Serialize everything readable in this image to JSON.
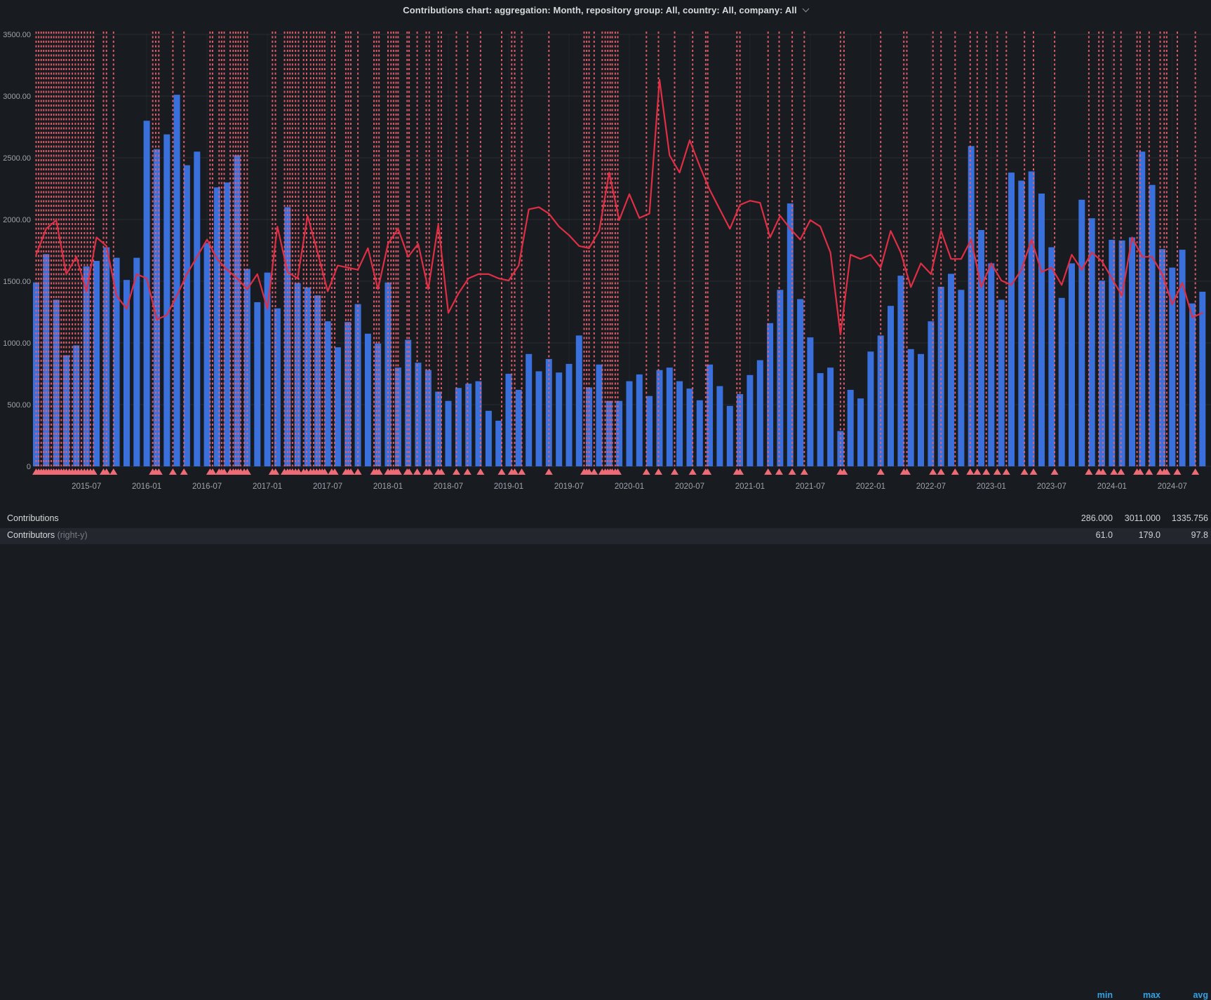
{
  "header": {
    "title": "Contributions chart: aggregation: Month, repository group: All, country: All, company: All"
  },
  "y_axis": {
    "labels": [
      {
        "text": "3500.00",
        "value": 3500
      },
      {
        "text": "3000.00",
        "value": 3000
      },
      {
        "text": "2500.00",
        "value": 2500
      },
      {
        "text": "2000.00",
        "value": 2000
      },
      {
        "text": "1500.00",
        "value": 1500
      },
      {
        "text": "1000.00",
        "value": 1000
      },
      {
        "text": "500.00",
        "value": 500
      },
      {
        "text": "0",
        "value": 0
      }
    ]
  },
  "x_axis": {
    "ticks": [
      {
        "text": "2015-07",
        "month": 5
      },
      {
        "text": "2016-01",
        "month": 11
      },
      {
        "text": "2016-07",
        "month": 17
      },
      {
        "text": "2017-01",
        "month": 23
      },
      {
        "text": "2017-07",
        "month": 29
      },
      {
        "text": "2018-01",
        "month": 35
      },
      {
        "text": "2018-07",
        "month": 41
      },
      {
        "text": "2019-01",
        "month": 47
      },
      {
        "text": "2019-07",
        "month": 53
      },
      {
        "text": "2020-01",
        "month": 59
      },
      {
        "text": "2020-07",
        "month": 65
      },
      {
        "text": "2021-01",
        "month": 71
      },
      {
        "text": "2021-07",
        "month": 77
      },
      {
        "text": "2022-01",
        "month": 83
      },
      {
        "text": "2022-07",
        "month": 89
      },
      {
        "text": "2023-01",
        "month": 95
      },
      {
        "text": "2023-07",
        "month": 101
      },
      {
        "text": "2024-01",
        "month": 107
      },
      {
        "text": "2024-07",
        "month": 113
      }
    ]
  },
  "chart_data": {
    "type": "bar+line",
    "start_month": "2015-02",
    "end_month": "2024-10",
    "left_axis": {
      "min": 0,
      "max": 3500
    },
    "right_axis": {
      "min": 0,
      "max": 200
    },
    "series": [
      {
        "name": "Contributions",
        "type": "bar",
        "axis": "left",
        "color": "#3a70db",
        "values": [
          1490,
          1720,
          1350,
          900,
          980,
          1620,
          1665,
          1775,
          1690,
          1510,
          1690,
          2800,
          2570,
          2690,
          3011,
          2440,
          2550,
          1810,
          2260,
          2300,
          2520,
          1600,
          1330,
          1570,
          1280,
          2100,
          1485,
          1450,
          1385,
          1175,
          965,
          1170,
          1315,
          1075,
          995,
          1490,
          800,
          1025,
          840,
          780,
          605,
          530,
          635,
          670,
          690,
          450,
          370,
          750,
          620,
          910,
          770,
          870,
          760,
          830,
          1060,
          640,
          825,
          530,
          530,
          690,
          745,
          570,
          780,
          800,
          690,
          630,
          535,
          825,
          650,
          490,
          585,
          740,
          860,
          1160,
          1430,
          2130,
          1355,
          1045,
          755,
          800,
          286,
          620,
          550,
          930,
          1060,
          1300,
          1545,
          950,
          910,
          1175,
          1455,
          1560,
          1430,
          2595,
          1915,
          1645,
          1350,
          2380,
          2315,
          2390,
          2210,
          1775,
          1365,
          1645,
          2160,
          2010,
          1505,
          1835,
          1830,
          1855,
          2550,
          2280,
          1760,
          1610,
          1755,
          1320,
          1415
        ]
      },
      {
        "name": "Contributors",
        "type": "line",
        "axis": "right",
        "color": "#e02f44",
        "values": [
          98,
          110,
          114,
          89,
          97,
          81,
          106,
          102,
          79,
          73,
          89,
          87,
          68,
          70,
          79,
          89,
          97,
          105,
          96,
          91,
          87,
          82,
          89,
          73,
          111,
          90,
          87,
          116,
          99,
          81,
          93,
          92,
          91,
          101,
          82,
          103,
          110,
          97,
          103,
          82,
          112,
          71,
          80,
          87,
          89,
          89,
          87,
          86,
          93,
          119,
          120,
          117,
          111,
          107,
          102,
          101,
          109,
          136,
          114,
          126,
          115,
          117,
          179,
          144,
          136,
          151,
          139,
          128,
          119,
          110,
          121,
          123,
          122,
          106,
          116,
          110,
          105,
          114,
          111,
          99,
          61,
          98,
          96,
          98,
          92,
          109,
          99,
          83,
          94,
          89,
          109,
          96,
          96,
          105,
          83,
          94,
          86,
          84,
          91,
          105,
          90,
          92,
          84,
          98,
          91,
          99,
          95,
          87,
          79,
          106,
          97,
          97,
          89,
          75,
          85,
          69,
          71
        ]
      }
    ],
    "annotations": {
      "color": "#ed5f6d",
      "marker_color": "#ee6b76",
      "positions_months": [
        0,
        0.25,
        0.5,
        0.75,
        1,
        1.25,
        1.5,
        1.75,
        2,
        2.25,
        2.5,
        2.75,
        3,
        3.3,
        3.6,
        3.9,
        4.2,
        4.5,
        4.8,
        5.1,
        5.4,
        5.7,
        6.7,
        7,
        7.7,
        11.6,
        11.9,
        12.2,
        13.6,
        14.7,
        17.3,
        17.55,
        18.2,
        18.45,
        18.7,
        19.3,
        19.6,
        19.85,
        20.1,
        20.35,
        20.7,
        21,
        23.5,
        23.8,
        24.7,
        25,
        25.25,
        25.5,
        25.8,
        26.1,
        26.6,
        26.9,
        27.3,
        27.6,
        27.9,
        28.2,
        28.45,
        28.7,
        29.4,
        29.7,
        30.8,
        31.05,
        31.3,
        32,
        33.6,
        33.85,
        34.1,
        35,
        35.3,
        35.55,
        35.8,
        36,
        36.9,
        37.1,
        37.9,
        38.8,
        39.1,
        40,
        40.3,
        41.8,
        42.9,
        44.2,
        46.3,
        47.3,
        47.6,
        48.3,
        51,
        54.5,
        54.75,
        55,
        55.5,
        56.3,
        56.6,
        56.85,
        57.1,
        57.3,
        57.6,
        57.85,
        60.7,
        61.9,
        63.5,
        65.3,
        66.6,
        66.8,
        69.7,
        70,
        72.8,
        73.9,
        75.2,
        76.4,
        80,
        80.35,
        84,
        86.3,
        86.6,
        89.2,
        90,
        91.4,
        92.9,
        93.6,
        94.5,
        95.6,
        96.5,
        98.3,
        99.2,
        101.3,
        104.7,
        105.7,
        106.1,
        107.2,
        107.9,
        109.5,
        109.8,
        110.7,
        111.8,
        112.2,
        112.45,
        113.5,
        115.3
      ],
      "grid_on": true,
      "legend_position": "bottom"
    }
  },
  "legend": {
    "headers": {
      "min": "min",
      "max": "max",
      "avg": "avg"
    },
    "rows": [
      {
        "label": "Contributions",
        "suffix": "",
        "min": "286.000",
        "max": "3011.000",
        "avg": "1335.756"
      },
      {
        "label": "Contributors",
        "suffix": "(right-y)",
        "min": "61.0",
        "max": "179.0",
        "avg": "97.8"
      }
    ]
  },
  "colors": {
    "background": "#181b20",
    "legend_highlight_row": "#23262d",
    "legend_header_blue": "#33a2e5",
    "bar_blue": "#3a70db",
    "line_red": "#e02f44",
    "annotation_red": "#ed5f6d",
    "axis_text": "#9fa3ac"
  }
}
